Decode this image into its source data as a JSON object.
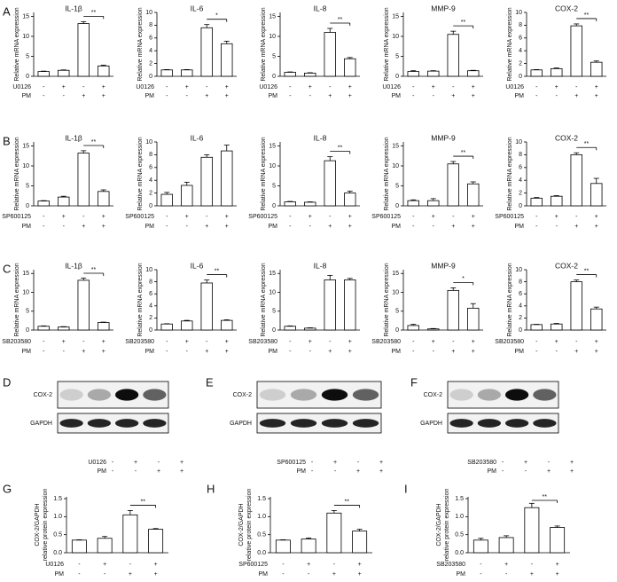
{
  "chart_data": [
    {
      "type": "bar",
      "panel": "A",
      "title": "IL-1β",
      "ylabel": "Relative mRNA expression",
      "values": [
        1.2,
        1.5,
        13.2,
        2.6
      ],
      "errors": [
        0.1,
        0.1,
        0.5,
        0.2
      ],
      "ylim": [
        0,
        16
      ],
      "yticks": [
        0,
        5,
        10,
        15
      ],
      "significance": "**",
      "treatments": [
        {
          "name": "U0126",
          "marks": [
            "-",
            "+",
            "-",
            "+"
          ]
        },
        {
          "name": "PM",
          "marks": [
            "-",
            "-",
            "+",
            "+"
          ]
        }
      ]
    },
    {
      "type": "bar",
      "title": "IL-6",
      "ylabel": "Relative mRNA expression",
      "values": [
        1,
        1,
        7.6,
        5.1
      ],
      "errors": [
        0.05,
        0.05,
        0.5,
        0.4
      ],
      "ylim": [
        0,
        10
      ],
      "yticks": [
        0,
        2,
        4,
        6,
        8,
        10
      ],
      "significance": "*",
      "treatments": [
        {
          "name": "U0126",
          "marks": [
            "-",
            "+",
            "-",
            "+"
          ]
        },
        {
          "name": "PM",
          "marks": [
            "-",
            "-",
            "+",
            "+"
          ]
        }
      ]
    },
    {
      "type": "bar",
      "title": "IL-8",
      "ylabel": "Relative mRNA expression",
      "values": [
        1,
        0.8,
        11,
        4.4
      ],
      "errors": [
        0.1,
        0.1,
        1,
        0.3
      ],
      "ylim": [
        0,
        16
      ],
      "yticks": [
        0,
        5,
        10,
        15
      ],
      "significance": "**",
      "treatments": [
        {
          "name": "U0126",
          "marks": [
            "-",
            "+",
            "-",
            "+"
          ]
        },
        {
          "name": "PM",
          "marks": [
            "-",
            "-",
            "+",
            "+"
          ]
        }
      ]
    },
    {
      "type": "bar",
      "title": "MMP-9",
      "ylabel": "Relative mRNA expression",
      "values": [
        1.2,
        1.3,
        10.5,
        1.4
      ],
      "errors": [
        0.2,
        0.1,
        0.8,
        0.1
      ],
      "ylim": [
        0,
        16
      ],
      "yticks": [
        0,
        5,
        10,
        15
      ],
      "significance": "**",
      "treatments": [
        {
          "name": "U0126",
          "marks": [
            "-",
            "+",
            "-",
            "+"
          ]
        },
        {
          "name": "PM",
          "marks": [
            "-",
            "-",
            "+",
            "+"
          ]
        }
      ]
    },
    {
      "type": "bar",
      "title": "COX-2",
      "ylabel": "Relative mRNA expression",
      "values": [
        1,
        1.2,
        7.9,
        2.2
      ],
      "errors": [
        0.05,
        0.1,
        0.3,
        0.2
      ],
      "ylim": [
        0,
        10
      ],
      "yticks": [
        0,
        2,
        4,
        6,
        8,
        10
      ],
      "significance": "**",
      "treatments": [
        {
          "name": "U0126",
          "marks": [
            "-",
            "+",
            "-",
            "+"
          ]
        },
        {
          "name": "PM",
          "marks": [
            "-",
            "-",
            "+",
            "+"
          ]
        }
      ]
    },
    {
      "type": "bar",
      "panel": "B",
      "title": "IL-1β",
      "ylabel": "Relative mRNA expression",
      "values": [
        1.2,
        2.2,
        13.2,
        3.6
      ],
      "errors": [
        0.1,
        0.2,
        0.6,
        0.4
      ],
      "ylim": [
        0,
        16
      ],
      "yticks": [
        0,
        5,
        10,
        15
      ],
      "significance": "**",
      "treatments": [
        {
          "name": "SP600125",
          "marks": [
            "-",
            "+",
            "-",
            "+"
          ]
        },
        {
          "name": "PM",
          "marks": [
            "-",
            "-",
            "+",
            "+"
          ]
        }
      ]
    },
    {
      "type": "bar",
      "title": "IL-6",
      "ylabel": "Relative mRNA expression",
      "values": [
        1.8,
        3.2,
        7.6,
        8.6
      ],
      "errors": [
        0.3,
        0.5,
        0.4,
        0.9
      ],
      "ylim": [
        0,
        10
      ],
      "yticks": [
        0,
        2,
        4,
        6,
        8,
        10
      ],
      "treatments": [
        {
          "name": "SP600125",
          "marks": [
            "-",
            "+",
            "-",
            "+"
          ]
        },
        {
          "name": "PM",
          "marks": [
            "-",
            "-",
            "+",
            "+"
          ]
        }
      ]
    },
    {
      "type": "bar",
      "title": "IL-8",
      "ylabel": "Relative mRNA expression",
      "values": [
        1,
        0.9,
        11.3,
        3.2
      ],
      "errors": [
        0.1,
        0.1,
        1,
        0.5
      ],
      "ylim": [
        0,
        16
      ],
      "yticks": [
        0,
        5,
        10,
        15
      ],
      "significance": "**",
      "treatments": [
        {
          "name": "SP600125",
          "marks": [
            "-",
            "+",
            "-",
            "+"
          ]
        },
        {
          "name": "PM",
          "marks": [
            "-",
            "-",
            "+",
            "+"
          ]
        }
      ]
    },
    {
      "type": "bar",
      "title": "MMP-9",
      "ylabel": "Relative mRNA expression",
      "values": [
        1.3,
        1.3,
        10.5,
        5.5
      ],
      "errors": [
        0.2,
        0.5,
        0.6,
        0.5
      ],
      "ylim": [
        0,
        16
      ],
      "yticks": [
        0,
        5,
        10,
        15
      ],
      "significance": "**",
      "treatments": [
        {
          "name": "SP600125",
          "marks": [
            "-",
            "+",
            "-",
            "+"
          ]
        },
        {
          "name": "PM",
          "marks": [
            "-",
            "-",
            "+",
            "+"
          ]
        }
      ]
    },
    {
      "type": "bar",
      "title": "COX-2",
      "ylabel": "Relative mRNA expression",
      "values": [
        1.2,
        1.5,
        8,
        3.5
      ],
      "errors": [
        0.1,
        0.1,
        0.3,
        0.8
      ],
      "ylim": [
        0,
        10
      ],
      "yticks": [
        0,
        2,
        4,
        6,
        8,
        10
      ],
      "significance": "**",
      "treatments": [
        {
          "name": "SP600125",
          "marks": [
            "-",
            "+",
            "-",
            "+"
          ]
        },
        {
          "name": "PM",
          "marks": [
            "-",
            "-",
            "+",
            "+"
          ]
        }
      ]
    },
    {
      "type": "bar",
      "panel": "C",
      "title": "IL-1β",
      "ylabel": "Relative mRNA expression",
      "values": [
        1,
        0.8,
        13.2,
        2
      ],
      "errors": [
        0.1,
        0.1,
        0.6,
        0.1
      ],
      "ylim": [
        0,
        16
      ],
      "yticks": [
        0,
        5,
        10,
        15
      ],
      "significance": "**",
      "treatments": [
        {
          "name": "SB203580",
          "marks": [
            "-",
            "+",
            "-",
            "+"
          ]
        },
        {
          "name": "PM",
          "marks": [
            "-",
            "-",
            "+",
            "+"
          ]
        }
      ]
    },
    {
      "type": "bar",
      "title": "IL-6",
      "ylabel": "Relative mRNA expression",
      "values": [
        1,
        1.5,
        7.8,
        1.6
      ],
      "errors": [
        0.05,
        0.1,
        0.5,
        0.1
      ],
      "ylim": [
        0,
        10
      ],
      "yticks": [
        0,
        2,
        4,
        6,
        8,
        10
      ],
      "significance": "**",
      "treatments": [
        {
          "name": "SB203580",
          "marks": [
            "-",
            "+",
            "-",
            "+"
          ]
        },
        {
          "name": "PM",
          "marks": [
            "-",
            "-",
            "+",
            "+"
          ]
        }
      ]
    },
    {
      "type": "bar",
      "title": "IL-8",
      "ylabel": "Relative mRNA expression",
      "values": [
        1,
        0.5,
        13.3,
        13.3
      ],
      "errors": [
        0.1,
        0.1,
        1.2,
        0.4
      ],
      "ylim": [
        0,
        16
      ],
      "yticks": [
        0,
        5,
        10,
        15
      ],
      "treatments": [
        {
          "name": "SB203580",
          "marks": [
            "-",
            "+",
            "-",
            "+"
          ]
        },
        {
          "name": "PM",
          "marks": [
            "-",
            "-",
            "+",
            "+"
          ]
        }
      ]
    },
    {
      "type": "bar",
      "title": "MMP-9",
      "ylabel": "Relative mRNA expression",
      "values": [
        1.2,
        0.3,
        10.5,
        5.8
      ],
      "errors": [
        0.3,
        0.1,
        0.7,
        1.2
      ],
      "ylim": [
        0,
        16
      ],
      "yticks": [
        0,
        5,
        10,
        15
      ],
      "significance": "*",
      "treatments": [
        {
          "name": "SB203580",
          "marks": [
            "-",
            "+",
            "-",
            "+"
          ]
        },
        {
          "name": "PM",
          "marks": [
            "-",
            "-",
            "+",
            "+"
          ]
        }
      ]
    },
    {
      "type": "bar",
      "title": "COX-2",
      "ylabel": "Relative mRNA expression",
      "values": [
        0.9,
        1,
        8,
        3.5
      ],
      "errors": [
        0.05,
        0.1,
        0.3,
        0.3
      ],
      "ylim": [
        0,
        10
      ],
      "yticks": [
        0,
        2,
        4,
        6,
        8,
        10
      ],
      "significance": "**",
      "treatments": [
        {
          "name": "SB203580",
          "marks": [
            "-",
            "+",
            "-",
            "+"
          ]
        },
        {
          "name": "PM",
          "marks": [
            "-",
            "-",
            "+",
            "+"
          ]
        }
      ]
    },
    {
      "type": "bar",
      "panel": "G",
      "ylabel": [
        "COX-2/GAPDH",
        "relative protein expression"
      ],
      "values": [
        0.35,
        0.4,
        1.05,
        0.65
      ],
      "errors": [
        0.01,
        0.05,
        0.12,
        0.02
      ],
      "ylim": [
        0,
        1.55
      ],
      "yticks": [
        {
          "value": 0,
          "label": "0.0"
        },
        0.5,
        {
          "value": 1,
          "label": "1.0"
        },
        1.5
      ],
      "significance": "**",
      "treatments": [
        {
          "name": "U0126",
          "marks": [
            "-",
            "+",
            "-",
            "+"
          ]
        },
        {
          "name": "PM",
          "marks": [
            "-",
            "-",
            "+",
            "+"
          ]
        }
      ]
    },
    {
      "type": "bar",
      "panel": "H",
      "ylabel": [
        "COX-2/GAPDH",
        "relative protein expression"
      ],
      "values": [
        0.35,
        0.38,
        1.1,
        0.6
      ],
      "errors": [
        0.01,
        0.03,
        0.07,
        0.05
      ],
      "ylim": [
        0,
        1.55
      ],
      "yticks": [
        {
          "value": 0,
          "label": "0.0"
        },
        0.5,
        {
          "value": 1,
          "label": "1.0"
        },
        1.5
      ],
      "significance": "**",
      "treatments": [
        {
          "name": "SP600125",
          "marks": [
            "-",
            "+",
            "-",
            "+"
          ]
        },
        {
          "name": "PM",
          "marks": [
            "-",
            "-",
            "+",
            "+"
          ]
        }
      ]
    },
    {
      "type": "bar",
      "panel": "I",
      "ylabel": [
        "COX-2/GAPDH",
        "relative protein expression"
      ],
      "values": [
        0.35,
        0.42,
        1.25,
        0.7
      ],
      "errors": [
        0.05,
        0.05,
        0.12,
        0.04
      ],
      "ylim": [
        0,
        1.55
      ],
      "yticks": [
        {
          "value": 0,
          "label": "0.0"
        },
        0.5,
        {
          "value": 1,
          "label": "1.0"
        },
        1.5
      ],
      "significance": "**",
      "treatments": [
        {
          "name": "SB203580",
          "marks": [
            "-",
            "+",
            "-",
            "+"
          ]
        },
        {
          "name": "PM",
          "marks": [
            "-",
            "-",
            "+",
            "+"
          ]
        }
      ]
    }
  ],
  "blots": [
    {
      "panel": "D",
      "bands": [
        "COX-2",
        "GAPDH"
      ],
      "treatments": [
        {
          "name": "U0126",
          "marks": [
            "-",
            "+",
            "-",
            "+"
          ]
        },
        {
          "name": "PM",
          "marks": [
            "-",
            "-",
            "+",
            "+"
          ]
        }
      ]
    },
    {
      "panel": "E",
      "bands": [
        "COX-2",
        "GAPDH"
      ],
      "treatments": [
        {
          "name": "SP600125",
          "marks": [
            "-",
            "+",
            "-",
            "+"
          ]
        },
        {
          "name": "PM",
          "marks": [
            "-",
            "-",
            "+",
            "+"
          ]
        }
      ]
    },
    {
      "panel": "F",
      "bands": [
        "COX-2",
        "GAPDH"
      ],
      "treatments": [
        {
          "name": "SB203580",
          "marks": [
            "-",
            "+",
            "-",
            "+"
          ]
        },
        {
          "name": "PM",
          "marks": [
            "-",
            "-",
            "+",
            "+"
          ]
        }
      ]
    }
  ]
}
